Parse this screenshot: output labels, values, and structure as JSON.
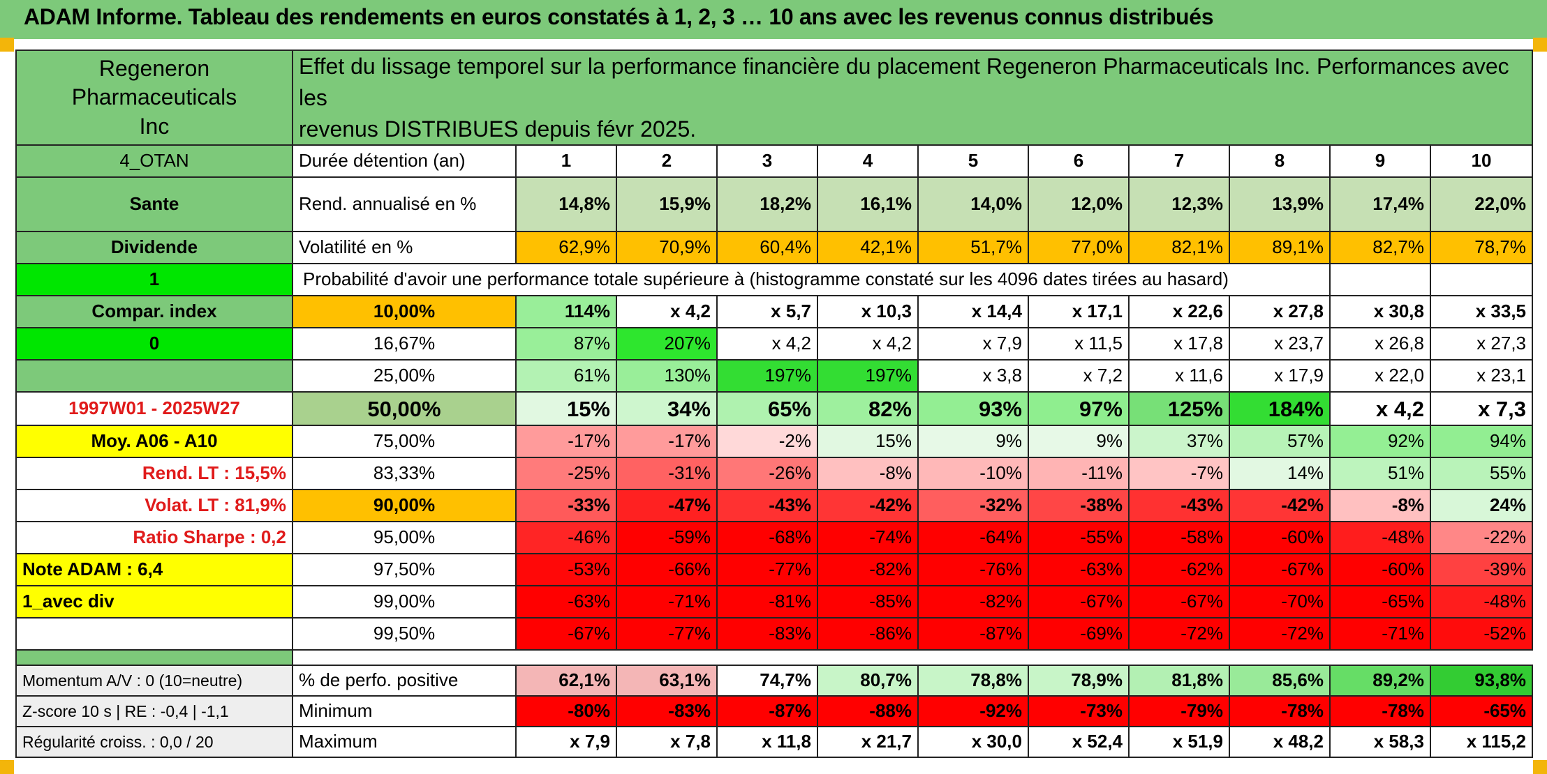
{
  "title": "ADAM Informe. Tableau des rendements en euros constatés à 1, 2, 3 … 10 ans avec les revenus connus distribués",
  "header": {
    "name_line1": "Regeneron Pharmaceuticals",
    "name_line2": "Inc",
    "desc_line1": "Effet du lissage temporel sur la performance financière du placement Regeneron Pharmaceuticals Inc. Performances avec les",
    "desc_line2": "revenus DISTRIBUES depuis févr 2025."
  },
  "colors": {
    "green": "#7dc97a",
    "light_green": "#c6e0b4",
    "orange": "#ffc000",
    "yellow": "#ffff00",
    "bright_green": "#00e600",
    "red": "#ff0000"
  },
  "left": {
    "group": "4_OTAN",
    "sector": "Sante",
    "dividend_label": "Dividende",
    "dividend_value": "1",
    "compar_label": "Compar. index",
    "compar_value": "0",
    "period": "1997W01 - 2025W27",
    "moy": "Moy. A06 - A10",
    "rend_lt": "Rend. LT :    15,5%",
    "volat_lt": "Volat. LT :    81,9%",
    "sharpe": "Ratio Sharpe :    0,2",
    "note": "Note ADAM : 6,4",
    "avec_div": "1_avec div",
    "momentum": "Momentum A/V : 0 (10=neutre)",
    "zscore": "Z-score 10 s | RE : -0,4 | -1,1",
    "regularite": "Régularité croiss. : 0,0 / 20"
  },
  "table": {
    "duree_label": "Durée détention (an)",
    "years": [
      "1",
      "2",
      "3",
      "4",
      "5",
      "6",
      "7",
      "8",
      "9",
      "10"
    ],
    "rend_label": "Rend. annualisé en %",
    "rend": [
      "14,8%",
      "15,9%",
      "18,2%",
      "16,1%",
      "14,0%",
      "12,0%",
      "12,3%",
      "13,9%",
      "17,4%",
      "22,0%"
    ],
    "vol_label": "Volatilité en %",
    "vol": [
      "62,9%",
      "70,9%",
      "60,4%",
      "42,1%",
      "51,7%",
      "77,0%",
      "82,1%",
      "89,1%",
      "82,7%",
      "78,7%"
    ],
    "prob_label": "Probabilité d'avoir une performance totale supérieure à (histogramme constaté sur les 4096 dates tirées au hasard)",
    "prob_rows": [
      {
        "p": "10,00%",
        "v": [
          "114%",
          "x 4,2",
          "x 5,7",
          "x 10,3",
          "x 14,4",
          "x 17,1",
          "x 22,6",
          "x 27,8",
          "x 30,8",
          "x 33,5"
        ]
      },
      {
        "p": "16,67%",
        "v": [
          "87%",
          "207%",
          "x 4,2",
          "x 4,2",
          "x 7,9",
          "x 11,5",
          "x 17,8",
          "x 23,7",
          "x 26,8",
          "x 27,3"
        ]
      },
      {
        "p": "25,00%",
        "v": [
          "61%",
          "130%",
          "197%",
          "197%",
          "x 3,8",
          "x 7,2",
          "x 11,6",
          "x 17,9",
          "x 22,0",
          "x 23,1"
        ]
      },
      {
        "p": "50,00%",
        "v": [
          "15%",
          "34%",
          "65%",
          "82%",
          "93%",
          "97%",
          "125%",
          "184%",
          "x 4,2",
          "x 7,3"
        ]
      },
      {
        "p": "75,00%",
        "v": [
          "-17%",
          "-17%",
          "-2%",
          "15%",
          "9%",
          "9%",
          "37%",
          "57%",
          "92%",
          "94%"
        ]
      },
      {
        "p": "83,33%",
        "v": [
          "-25%",
          "-31%",
          "-26%",
          "-8%",
          "-10%",
          "-11%",
          "-7%",
          "14%",
          "51%",
          "55%"
        ]
      },
      {
        "p": "90,00%",
        "v": [
          "-33%",
          "-47%",
          "-43%",
          "-42%",
          "-32%",
          "-38%",
          "-43%",
          "-42%",
          "-8%",
          "24%"
        ]
      },
      {
        "p": "95,00%",
        "v": [
          "-46%",
          "-59%",
          "-68%",
          "-74%",
          "-64%",
          "-55%",
          "-58%",
          "-60%",
          "-48%",
          "-22%"
        ]
      },
      {
        "p": "97,50%",
        "v": [
          "-53%",
          "-66%",
          "-77%",
          "-82%",
          "-76%",
          "-63%",
          "-62%",
          "-67%",
          "-60%",
          "-39%"
        ]
      },
      {
        "p": "99,00%",
        "v": [
          "-63%",
          "-71%",
          "-81%",
          "-85%",
          "-82%",
          "-67%",
          "-67%",
          "-70%",
          "-65%",
          "-48%"
        ]
      },
      {
        "p": "99,50%",
        "v": [
          "-67%",
          "-77%",
          "-83%",
          "-86%",
          "-87%",
          "-69%",
          "-72%",
          "-72%",
          "-71%",
          "-52%"
        ]
      }
    ],
    "pos_label": "% de perfo. positive",
    "pos": [
      "62,1%",
      "63,1%",
      "74,7%",
      "80,7%",
      "78,8%",
      "78,9%",
      "81,8%",
      "85,6%",
      "89,2%",
      "93,8%"
    ],
    "min_label": "Minimum",
    "min": [
      "-80%",
      "-83%",
      "-87%",
      "-88%",
      "-92%",
      "-73%",
      "-79%",
      "-78%",
      "-78%",
      "-65%"
    ],
    "max_label": "Maximum",
    "max": [
      "x 7,9",
      "x 7,8",
      "x 11,8",
      "x 21,7",
      "x 30,0",
      "x 52,4",
      "x 51,9",
      "x 48,2",
      "x 58,3",
      "x 115,2"
    ]
  }
}
